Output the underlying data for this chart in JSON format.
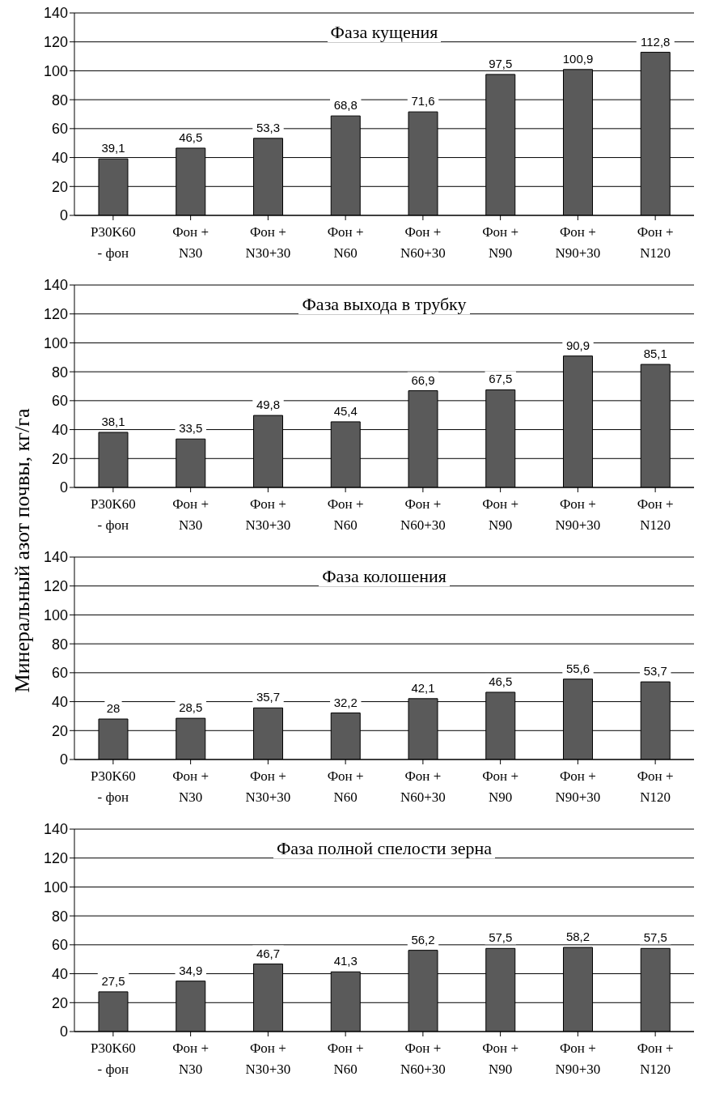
{
  "chart_data": [
    {
      "type": "bar",
      "title": "Фаза кущения",
      "categories": [
        "P30K60\n- фон",
        "Фон +\nN30",
        "Фон +\nN30+30",
        "Фон +\nN60",
        "Фон +\nN60+30",
        "Фон +\nN90",
        "Фон +\nN90+30",
        "Фон +\nN120"
      ],
      "values": [
        39.1,
        46.5,
        53.3,
        68.8,
        71.6,
        97.5,
        100.9,
        112.8
      ],
      "value_labels": [
        "39,1",
        "46,5",
        "53,3",
        "68,8",
        "71,6",
        "97,5",
        "100,9",
        "112,8"
      ],
      "color": "#5a5a5a",
      "ylim": [
        0,
        140
      ],
      "yticks": [
        0,
        20,
        40,
        60,
        80,
        100,
        120,
        140
      ],
      "grid": "y",
      "legend": false
    },
    {
      "type": "bar",
      "title": "Фаза выхода в трубку",
      "ylabel": "Минеральный азот почвы, кг/га",
      "categories": [
        "P30K60\n- фон",
        "Фон +\nN30",
        "Фон +\nN30+30",
        "Фон +\nN60",
        "Фон +\nN60+30",
        "Фон +\nN90",
        "Фон +\nN90+30",
        "Фон +\nN120"
      ],
      "values": [
        38.1,
        33.5,
        49.8,
        45.4,
        66.9,
        67.5,
        90.9,
        85.1
      ],
      "value_labels": [
        "38,1",
        "33,5",
        "49,8",
        "45,4",
        "66,9",
        "67,5",
        "90,9",
        "85,1"
      ],
      "color": "#5a5a5a",
      "ylim": [
        0,
        140
      ],
      "yticks": [
        0,
        20,
        40,
        60,
        80,
        100,
        120,
        140
      ],
      "grid": "y",
      "legend": false
    },
    {
      "type": "bar",
      "title": "Фаза колошения",
      "categories": [
        "P30K60\n- фон",
        "Фон +\nN30",
        "Фон +\nN30+30",
        "Фон +\nN60",
        "Фон +\nN60+30",
        "Фон +\nN90",
        "Фон +\nN90+30",
        "Фон +\nN120"
      ],
      "values": [
        28,
        28.5,
        35.7,
        32.2,
        42.1,
        46.5,
        55.6,
        53.7
      ],
      "value_labels": [
        "28",
        "28,5",
        "35,7",
        "32,2",
        "42,1",
        "46,5",
        "55,6",
        "53,7"
      ],
      "color": "#5a5a5a",
      "ylim": [
        0,
        140
      ],
      "yticks": [
        0,
        20,
        40,
        60,
        80,
        100,
        120,
        140
      ],
      "grid": "y",
      "legend": false
    },
    {
      "type": "bar",
      "title": "Фаза полной спелости зерна",
      "categories": [
        "P30K60\n- фон",
        "Фон +\nN30",
        "Фон +\nN30+30",
        "Фон +\nN60",
        "Фон +\nN60+30",
        "Фон +\nN90",
        "Фон +\nN90+30",
        "Фон +\nN120"
      ],
      "values": [
        27.5,
        34.9,
        46.7,
        41.3,
        56.2,
        57.5,
        58.2,
        57.5
      ],
      "value_labels": [
        "27,5",
        "34,9",
        "46,7",
        "41,3",
        "56,2",
        "57,5",
        "58,2",
        "57,5"
      ],
      "color": "#5a5a5a",
      "ylim": [
        0,
        140
      ],
      "yticks": [
        0,
        20,
        40,
        60,
        80,
        100,
        120,
        140
      ],
      "grid": "y",
      "legend": false
    }
  ]
}
